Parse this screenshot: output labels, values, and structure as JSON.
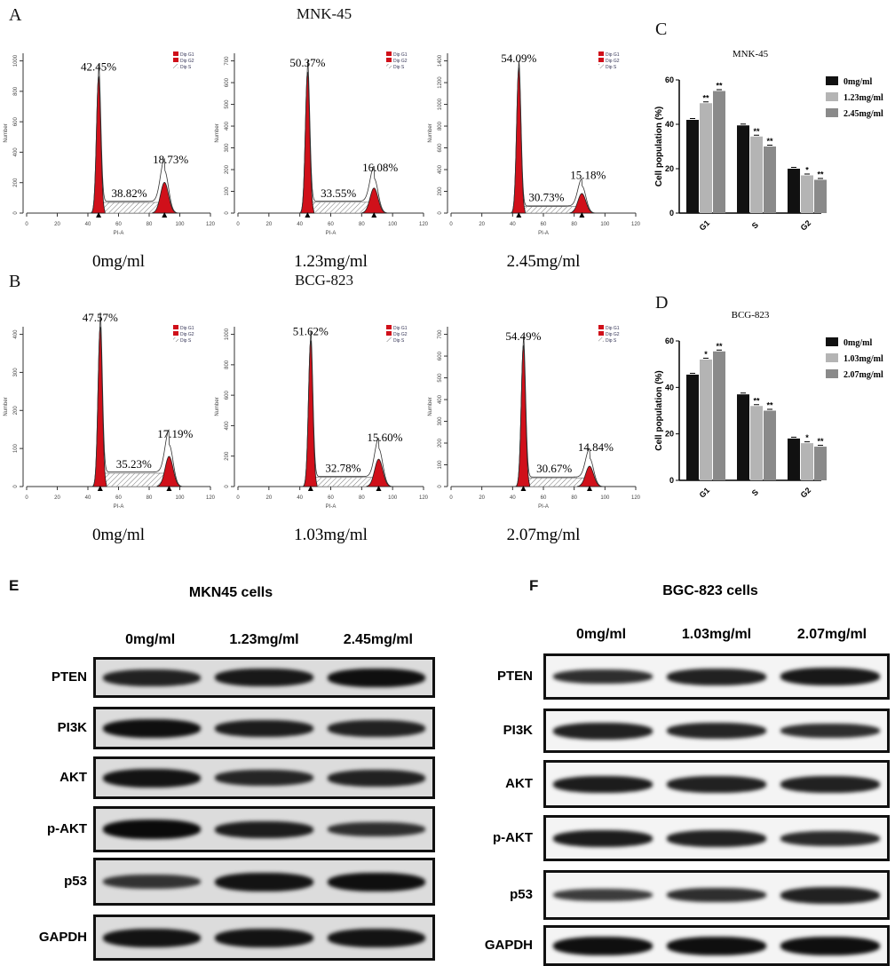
{
  "panels": {
    "A": "A",
    "B": "B",
    "C": "C",
    "D": "D",
    "E": "E",
    "F": "F"
  },
  "titles": {
    "A": "MNK-45",
    "B": "BCG-823"
  },
  "chart_data": [
    {
      "type": "histogram",
      "panel": "A",
      "ylabel": "Number",
      "xlabel": "PI-A",
      "xlim": [
        0,
        120
      ],
      "xticks": [
        0,
        20,
        40,
        60,
        80,
        100,
        120
      ],
      "yticks": [
        0,
        200,
        400,
        600,
        800,
        1000
      ],
      "legend": [
        "Dip G1",
        "Dip G2",
        "Dip S"
      ],
      "concentration": "0mg/ml",
      "g1_pos": 47,
      "g1_peak": 900,
      "g2_pos": 90,
      "g2_peak": 280,
      "s_level": 70,
      "labels": {
        "g1": "42.45%",
        "s": "38.82%",
        "g2": "18.73%"
      }
    },
    {
      "type": "histogram",
      "panel": "A",
      "ylabel": "Number",
      "xlabel": "PI-A",
      "xlim": [
        0,
        120
      ],
      "xticks": [
        0,
        20,
        40,
        60,
        80,
        100,
        120
      ],
      "yticks": [
        0,
        100,
        200,
        300,
        400,
        500,
        600,
        700
      ],
      "legend": [
        "Dip G1",
        "Dip G2",
        "Dip S"
      ],
      "concentration": "1.23mg/ml",
      "g1_pos": 45,
      "g1_peak": 650,
      "g2_pos": 88,
      "g2_peak": 160,
      "s_level": 50,
      "labels": {
        "g1": "50.37%",
        "s": "33.55%",
        "g2": "16.08%"
      }
    },
    {
      "type": "histogram",
      "panel": "A",
      "ylabel": "Number",
      "xlabel": "PI-A",
      "xlim": [
        0,
        120
      ],
      "xticks": [
        0,
        20,
        40,
        60,
        80,
        100,
        120
      ],
      "yticks": [
        0,
        200,
        400,
        600,
        800,
        1000,
        1200,
        1400
      ],
      "legend": [
        "Dip G1",
        "Dip G2",
        "Dip S"
      ],
      "concentration": "2.45mg/ml",
      "g1_pos": 44,
      "g1_peak": 1340,
      "g2_pos": 85,
      "g2_peak": 250,
      "s_level": 60,
      "labels": {
        "g1": "54.09%",
        "s": "30.73%",
        "g2": "15.18%"
      }
    },
    {
      "type": "histogram",
      "panel": "B",
      "ylabel": "Number",
      "xlabel": "PI-A",
      "xlim": [
        0,
        120
      ],
      "xticks": [
        0,
        20,
        40,
        60,
        80,
        100,
        120
      ],
      "yticks": [
        0,
        100,
        200,
        300,
        400
      ],
      "legend": [
        "Dip G1",
        "Dip G2",
        "Dip S"
      ],
      "concentration": "0mg/ml",
      "g1_pos": 48,
      "g1_peak": 420,
      "g2_pos": 93,
      "g2_peak": 110,
      "s_level": 35,
      "labels": {
        "g1": "47.57%",
        "s": "35.23%",
        "g2": "17.19%"
      }
    },
    {
      "type": "histogram",
      "panel": "B",
      "ylabel": "Number",
      "xlabel": "PI-A",
      "xlim": [
        0,
        120
      ],
      "xticks": [
        0,
        20,
        40,
        60,
        80,
        100,
        120
      ],
      "yticks": [
        0,
        200,
        400,
        600,
        800,
        1000
      ],
      "legend": [
        "Dip G1",
        "Dip G2",
        "Dip S"
      ],
      "concentration": "1.03mg/ml",
      "g1_pos": 47,
      "g1_peak": 960,
      "g2_pos": 91,
      "g2_peak": 250,
      "s_level": 60,
      "labels": {
        "g1": "51.62%",
        "s": "32.78%",
        "g2": "15.60%"
      }
    },
    {
      "type": "histogram",
      "panel": "B",
      "ylabel": "Number",
      "xlabel": "PI-A",
      "xlim": [
        0,
        120
      ],
      "xticks": [
        0,
        20,
        40,
        60,
        80,
        100,
        120
      ],
      "yticks": [
        0,
        100,
        200,
        300,
        400,
        500,
        600,
        700
      ],
      "legend": [
        "Dip G1",
        "Dip G2",
        "Dip S"
      ],
      "concentration": "2.07mg/ml",
      "g1_pos": 47,
      "g1_peak": 650,
      "g2_pos": 90,
      "g2_peak": 130,
      "s_level": 40,
      "labels": {
        "g1": "54.49%",
        "s": "30.67%",
        "g2": "14.84%"
      }
    },
    {
      "type": "bar",
      "panel": "C",
      "title": "MNK-45",
      "ylabel": "Cell population (%)",
      "ylim": [
        0,
        60
      ],
      "yticks": [
        0,
        20,
        40,
        60
      ],
      "categories": [
        "G1",
        "S",
        "G2"
      ],
      "series": [
        {
          "name": "0mg/ml",
          "color": "#111111",
          "values": [
            42,
            39.5,
            20
          ],
          "sig": [
            "",
            "",
            ""
          ]
        },
        {
          "name": "1.23mg/ml",
          "color": "#b4b4b4",
          "values": [
            49.5,
            34.5,
            17
          ],
          "sig": [
            "**",
            "**",
            "*"
          ]
        },
        {
          "name": "2.45mg/ml",
          "color": "#8a8a8a",
          "values": [
            55,
            30,
            15
          ],
          "sig": [
            "**",
            "**",
            "**"
          ]
        }
      ]
    },
    {
      "type": "bar",
      "panel": "D",
      "title": "BCG-823",
      "ylabel": "Cell population (%)",
      "ylim": [
        0,
        60
      ],
      "yticks": [
        0,
        20,
        40,
        60
      ],
      "categories": [
        "G1",
        "S",
        "G2"
      ],
      "series": [
        {
          "name": "0mg/ml",
          "color": "#111111",
          "values": [
            45.5,
            37,
            18
          ],
          "sig": [
            "",
            "",
            ""
          ]
        },
        {
          "name": "1.03mg/ml",
          "color": "#b4b4b4",
          "values": [
            52,
            32,
            16
          ],
          "sig": [
            "*",
            "**",
            "*"
          ]
        },
        {
          "name": "2.07mg/ml",
          "color": "#8a8a8a",
          "values": [
            55.5,
            30,
            14.5
          ],
          "sig": [
            "**",
            "**",
            "**"
          ]
        }
      ]
    }
  ],
  "western": {
    "E": {
      "title": "MKN45 cells",
      "columns": [
        "0mg/ml",
        "1.23mg/ml",
        "2.45mg/ml"
      ],
      "rows": [
        {
          "label": "PTEN",
          "intensity": [
            0.75,
            0.85,
            0.95
          ]
        },
        {
          "label": "PI3K",
          "intensity": [
            0.95,
            0.8,
            0.75
          ]
        },
        {
          "label": "AKT",
          "intensity": [
            0.9,
            0.7,
            0.75
          ]
        },
        {
          "label": "p-AKT",
          "intensity": [
            1.0,
            0.8,
            0.6
          ]
        },
        {
          "label": "p53",
          "intensity": [
            0.55,
            0.9,
            0.95
          ]
        },
        {
          "label": "GAPDH",
          "intensity": [
            0.9,
            0.9,
            0.9
          ]
        }
      ]
    },
    "F": {
      "title": "BGC-823 cells",
      "columns": [
        "0mg/ml",
        "1.03mg/ml",
        "2.07mg/ml"
      ],
      "rows": [
        {
          "label": "PTEN",
          "intensity": [
            0.6,
            0.75,
            0.85
          ]
        },
        {
          "label": "PI3K",
          "intensity": [
            0.75,
            0.7,
            0.6
          ]
        },
        {
          "label": "AKT",
          "intensity": [
            0.8,
            0.75,
            0.75
          ]
        },
        {
          "label": "p-AKT",
          "intensity": [
            0.8,
            0.75,
            0.65
          ]
        },
        {
          "label": "p53",
          "intensity": [
            0.45,
            0.6,
            0.75
          ]
        },
        {
          "label": "GAPDH",
          "intensity": [
            0.95,
            0.95,
            0.95
          ]
        }
      ]
    }
  }
}
